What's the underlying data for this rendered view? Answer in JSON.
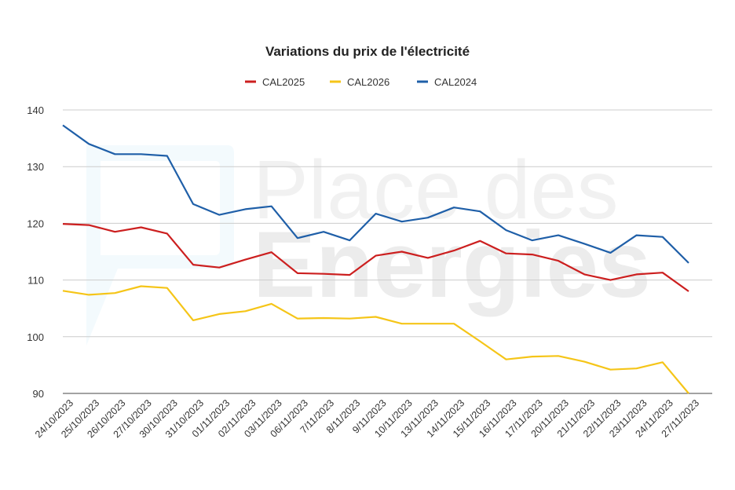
{
  "chart_data": {
    "type": "line",
    "title": "Variations du prix de l'électricité",
    "xlabel": "",
    "ylabel": "",
    "ylim": [
      90,
      140
    ],
    "yticks": [
      90,
      100,
      110,
      120,
      130,
      140
    ],
    "grid": true,
    "legend_position": "top-center",
    "categories": [
      "24/10/2023",
      "25/10/2023",
      "26/10/2023",
      "27/10/2023",
      "30/10/2023",
      "31/10/2023",
      "01/11/2023",
      "02/11/2023",
      "03/11/2023",
      "06/11/2023",
      "7/11/2023",
      "8/11/2023",
      "9/11/2023",
      "10/11/2023",
      "13/11/2023",
      "14/11/2023",
      "15/11/2023",
      "16/11/2023",
      "17/11/2023",
      "20/11/2023",
      "21/11/2023",
      "22/11/2023",
      "23/11/2023",
      "24/11/2023",
      "27/11/2023"
    ],
    "series": [
      {
        "name": "CAL2025",
        "color": "#cc1f1f",
        "values": [
          119.9,
          119.7,
          118.5,
          119.3,
          118.2,
          112.7,
          112.2,
          113.6,
          114.9,
          111.2,
          111.1,
          110.9,
          114.3,
          115.0,
          113.9,
          115.2,
          116.9,
          114.7,
          114.5,
          113.4,
          111.0,
          110.0,
          111.0,
          111.3,
          108.0
        ]
      },
      {
        "name": "CAL2026",
        "color": "#f5c518",
        "values": [
          108.1,
          107.4,
          107.7,
          108.9,
          108.6,
          102.9,
          104.0,
          104.5,
          105.8,
          103.2,
          103.3,
          103.2,
          103.5,
          102.3,
          102.3,
          102.3,
          99.2,
          96.0,
          96.5,
          96.6,
          95.6,
          94.2,
          94.4,
          95.5,
          90.0
        ]
      },
      {
        "name": "CAL2024",
        "color": "#1f5fa8",
        "values": [
          137.3,
          134.0,
          132.2,
          132.2,
          131.9,
          123.4,
          121.5,
          122.5,
          123.0,
          117.4,
          118.5,
          117.0,
          121.7,
          120.3,
          121.0,
          122.8,
          122.1,
          118.8,
          117.0,
          117.9,
          116.4,
          114.8,
          117.9,
          117.6,
          113.0
        ]
      }
    ]
  }
}
